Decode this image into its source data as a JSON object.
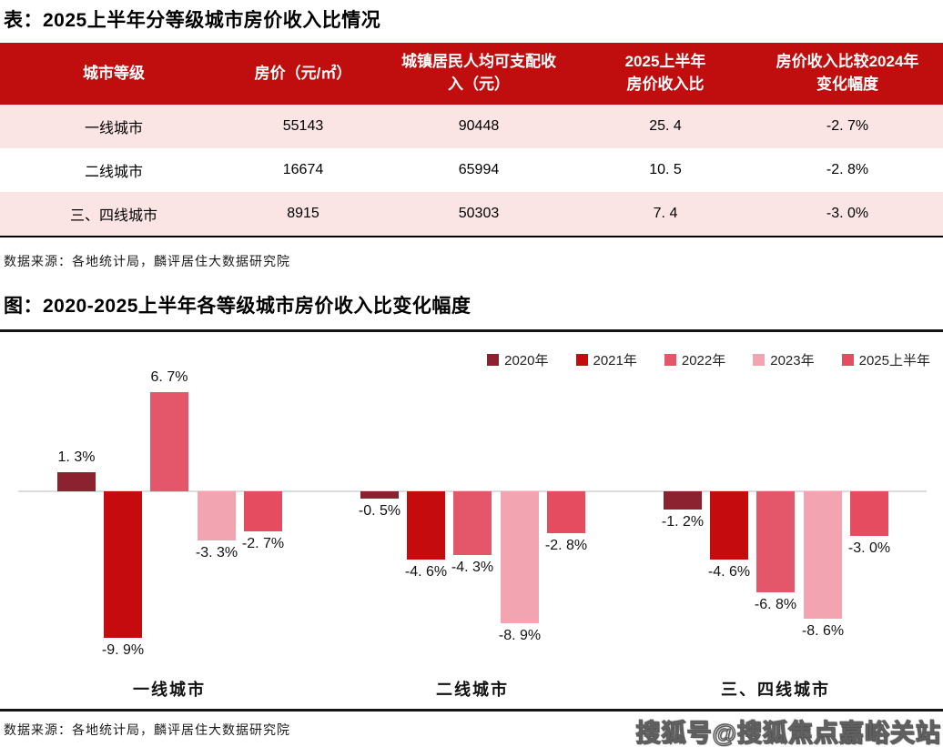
{
  "palette": {
    "table_header_bg": "#C00D0D",
    "table_row_pink": "#FBE5E4",
    "table_row_white": "#FFFFFF",
    "divider": "#141414",
    "zero_line": "#DCDCDC"
  },
  "table_section": {
    "title": "表：2025上半年分等级城市房价收入比情况",
    "columns": [
      "城市等级",
      "房价（元/㎡）",
      "城镇居民人均可支配收\n入（元）",
      "2025上半年\n房价收入比",
      "房价收入比较2024年\n变化幅度"
    ],
    "rows": [
      [
        "一线城市",
        "55143",
        "90448",
        "25. 4",
        "-2. 7%"
      ],
      [
        "二线城市",
        "16674",
        "65994",
        "10. 5",
        "-2. 8%"
      ],
      [
        "三、四线城市",
        "8915",
        "50303",
        "7. 4",
        "-3. 0%"
      ]
    ],
    "source": "数据来源：各地统计局，麟评居住大数据研究院"
  },
  "chart_section": {
    "title": "图：2020-2025上半年各等级城市房价收入比变化幅度",
    "source": "数据来源：各地统计局，麟评居住大数据研究院"
  },
  "chart_data": {
    "type": "bar",
    "title": "2020-2025上半年各等级城市房价收入比变化幅度",
    "categories": [
      "一线城市",
      "二线城市",
      "三、四线城市"
    ],
    "series": [
      {
        "name": "2020年",
        "color": "#8C2130",
        "values": [
          1.3,
          -0.5,
          -1.2
        ]
      },
      {
        "name": "2021年",
        "color": "#C50B0E",
        "values": [
          -9.9,
          -4.6,
          -4.6
        ]
      },
      {
        "name": "2022年",
        "color": "#E4576B",
        "values": [
          6.7,
          -4.3,
          -6.8
        ]
      },
      {
        "name": "2023年",
        "color": "#F2A5B0",
        "values": [
          -3.3,
          -8.9,
          -8.6
        ]
      },
      {
        "name": "2025上半年",
        "color": "#E64C5F",
        "values": [
          -2.7,
          -2.8,
          -3.0
        ]
      }
    ],
    "value_label_suffix": "%",
    "ylim": [
      -11,
      8
    ],
    "grid": false,
    "legend_position": "top-right"
  },
  "watermark": "搜狐号@搜狐焦点嘉峪关站"
}
